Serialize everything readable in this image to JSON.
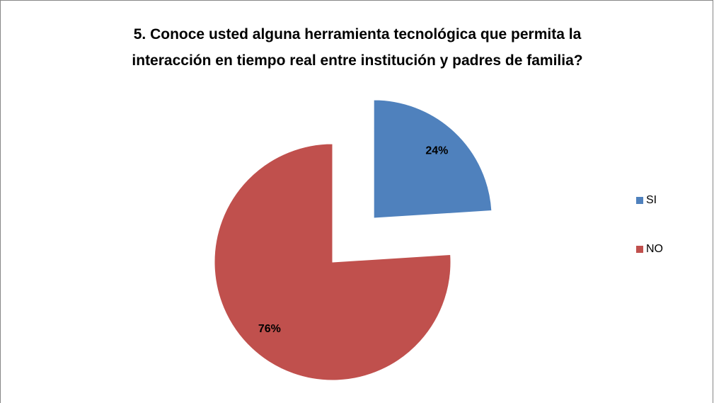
{
  "chart_data": {
    "type": "pie",
    "title": "5. Conoce usted alguna herramienta tecnológica que permita la interacción en tiempo real entre institución y padres de familia?",
    "categories": [
      "SI",
      "NO"
    ],
    "values": [
      24,
      76
    ],
    "value_labels": [
      "24%",
      "76%"
    ],
    "colors": [
      "#4f81bd",
      "#c0504d"
    ],
    "legend": "right"
  }
}
